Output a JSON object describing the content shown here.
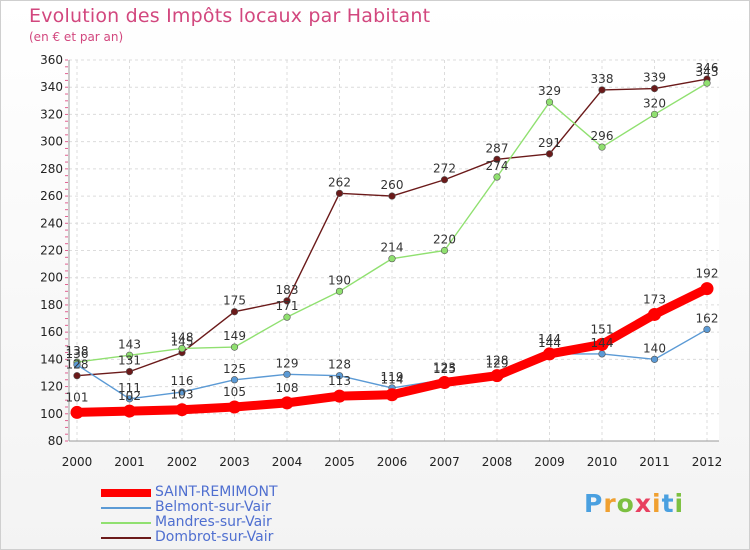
{
  "title": "Evolution des Impôts locaux par Habitant",
  "subtitle": "(en € et par an)",
  "logo_text": "Proxiti",
  "chart_data": {
    "type": "line",
    "title": "Evolution des Impôts locaux par Habitant",
    "subtitle": "(en € et par an)",
    "categories": [
      "2000",
      "2001",
      "2002",
      "2003",
      "2004",
      "2005",
      "2006",
      "2007",
      "2008",
      "2009",
      "2010",
      "2011",
      "2012"
    ],
    "y_ticks": [
      80,
      100,
      120,
      140,
      160,
      180,
      200,
      220,
      240,
      260,
      280,
      300,
      320,
      340,
      360
    ],
    "ylim": [
      80,
      360
    ],
    "grid": true,
    "legend_position": "bottom-left",
    "series": [
      {
        "name": "SAINT-REMIMONT",
        "color": "#ff0000",
        "values": [
          101,
          102,
          103,
          105,
          108,
          113,
          114,
          123,
          128,
          144,
          151,
          173,
          192
        ]
      },
      {
        "name": "Belmont-sur-Vair",
        "color": "#5b9ad5",
        "values": [
          136,
          111,
          116,
          125,
          129,
          128,
          119,
          125,
          129,
          144,
          144,
          140,
          162
        ]
      },
      {
        "name": "Mandres-sur-Vair",
        "color": "#90e070",
        "values": [
          138,
          143,
          148,
          149,
          171,
          190,
          214,
          220,
          274,
          329,
          296,
          320,
          343
        ]
      },
      {
        "name": "Dombrot-sur-Vair",
        "color": "#6b1a1a",
        "values": [
          128,
          131,
          145,
          175,
          183,
          262,
          260,
          272,
          287,
          291,
          338,
          339,
          346
        ]
      }
    ]
  }
}
